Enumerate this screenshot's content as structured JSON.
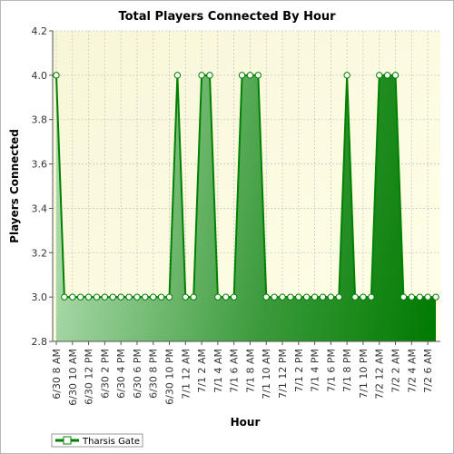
{
  "chart_data": {
    "type": "area",
    "title": "Total Players Connected By Hour",
    "xlabel": "Hour",
    "ylabel": "Players Connected",
    "ylim": [
      2.8,
      4.2
    ],
    "yticks": [
      "2.8",
      "3.0",
      "3.2",
      "3.4",
      "3.6",
      "3.8",
      "4.0",
      "4.2"
    ],
    "xtick_labels": [
      "6/30 8 AM",
      "6/30 10 AM",
      "6/30 12 PM",
      "6/30 2 PM",
      "6/30 4 PM",
      "6/30 6 PM",
      "6/30 8 PM",
      "6/30 10 PM",
      "7/1 12 AM",
      "7/1 2 AM",
      "7/1 4 AM",
      "7/1 6 AM",
      "7/1 8 AM",
      "7/1 10 AM",
      "7/1 12 PM",
      "7/1 2 PM",
      "7/1 4 PM",
      "7/1 6 PM",
      "7/1 8 PM",
      "7/1 10 PM",
      "7/2 12 AM",
      "7/2 2 AM",
      "7/2 4 AM",
      "7/2 6 AM"
    ],
    "grid": true,
    "legend_position": "bottom-left",
    "series": [
      {
        "name": "Tharsis Gate",
        "color": "#008000",
        "values": [
          4,
          3,
          3,
          3,
          3,
          3,
          3,
          3,
          3,
          3,
          3,
          3,
          3,
          3,
          3,
          4,
          3,
          3,
          4,
          4,
          3,
          3,
          3,
          4,
          4,
          4,
          3,
          3,
          3,
          3,
          3,
          3,
          3,
          3,
          3,
          3,
          4,
          3,
          3,
          3,
          4,
          4,
          4,
          3,
          3,
          3,
          3,
          3
        ]
      }
    ]
  }
}
